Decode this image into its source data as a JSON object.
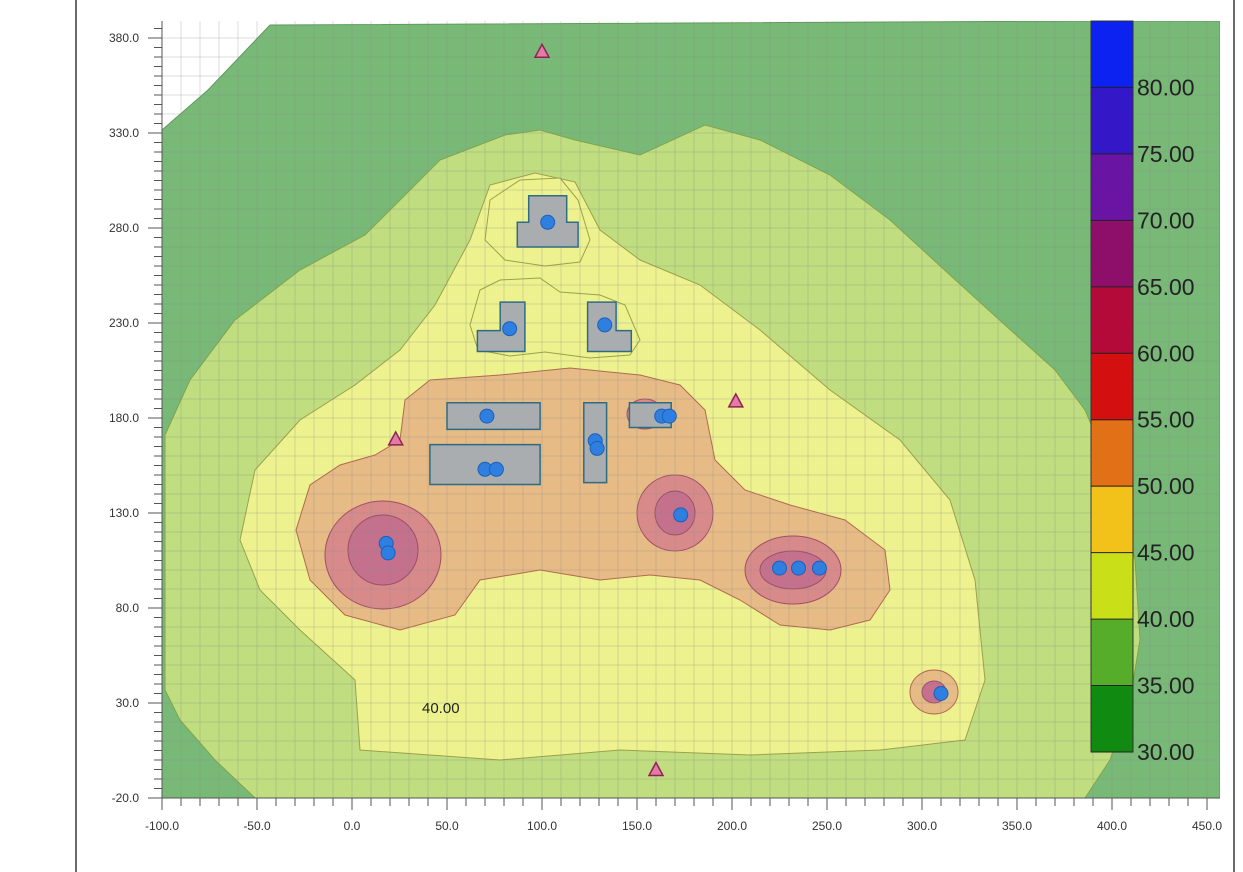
{
  "chart_data": {
    "type": "heatmap",
    "title": "",
    "xlabel": "",
    "ylabel": "",
    "xlim": [
      -100,
      455
    ],
    "ylim": [
      -20,
      390
    ],
    "x_ticks": [
      "-100.0",
      "-50.0",
      "0.0",
      "50.0",
      "100.0",
      "150.0",
      "200.0",
      "250.0",
      "300.0",
      "350.0",
      "400.0",
      "450.0"
    ],
    "y_ticks": [
      "-20.0",
      "30.0",
      "80.0",
      "130.0",
      "180.0",
      "230.0",
      "280.0",
      "330.0",
      "380.0"
    ],
    "x_tick_values": [
      -100,
      -50,
      0,
      50,
      100,
      150,
      200,
      250,
      300,
      350,
      400,
      450
    ],
    "y_tick_values": [
      -20,
      30,
      80,
      130,
      180,
      230,
      280,
      330,
      380
    ],
    "grid": true,
    "colorbar": {
      "levels": [
        30,
        35,
        40,
        45,
        50,
        55,
        60,
        65,
        70,
        75,
        80,
        85
      ],
      "labels": [
        "30.00",
        "35.00",
        "40.00",
        "45.00",
        "50.00",
        "55.00",
        "60.00",
        "65.00",
        "70.00",
        "75.00",
        "80.00"
      ],
      "colors": [
        "#118a11",
        "#56ad2a",
        "#c9e018",
        "#f3c21a",
        "#e27016",
        "#d40f0f",
        "#b40a3a",
        "#8e0f6a",
        "#6a14a3",
        "#3418c8",
        "#0c22f0"
      ]
    },
    "zone_colors": {
      "35-40": "#79b978",
      "40-45": "#c0dd80",
      "45-50": "#eef28e",
      "50-55": "#e7bb85",
      "55-60": "#d88a8a",
      "60-65": "#c5708d"
    },
    "contour_annotation": "40.00",
    "sources": [
      {
        "x": 103,
        "y": 283
      },
      {
        "x": 83,
        "y": 227
      },
      {
        "x": 133,
        "y": 229
      },
      {
        "x": 71,
        "y": 181
      },
      {
        "x": 163,
        "y": 181
      },
      {
        "x": 167,
        "y": 181
      },
      {
        "x": 70,
        "y": 153
      },
      {
        "x": 76,
        "y": 153
      },
      {
        "x": 128,
        "y": 168
      },
      {
        "x": 129,
        "y": 164
      },
      {
        "x": 173,
        "y": 129
      },
      {
        "x": 18,
        "y": 114
      },
      {
        "x": 19,
        "y": 109
      },
      {
        "x": 225,
        "y": 101
      },
      {
        "x": 235,
        "y": 101
      },
      {
        "x": 246,
        "y": 101
      },
      {
        "x": 310,
        "y": 35
      }
    ],
    "receivers": [
      {
        "x": 100,
        "y": 373
      },
      {
        "x": 23,
        "y": 169
      },
      {
        "x": 202,
        "y": 189
      },
      {
        "x": 160,
        "y": -5
      }
    ],
    "buildings": [
      {
        "points": [
          [
            93,
            297
          ],
          [
            113,
            297
          ],
          [
            113,
            283
          ],
          [
            119,
            283
          ],
          [
            119,
            270
          ],
          [
            87,
            270
          ],
          [
            87,
            283
          ],
          [
            93,
            283
          ]
        ]
      },
      {
        "points": [
          [
            78,
            241
          ],
          [
            91,
            241
          ],
          [
            91,
            215
          ],
          [
            66,
            215
          ],
          [
            66,
            226
          ],
          [
            78,
            226
          ]
        ]
      },
      {
        "points": [
          [
            124,
            241
          ],
          [
            139,
            241
          ],
          [
            139,
            226
          ],
          [
            147,
            226
          ],
          [
            147,
            215
          ],
          [
            124,
            215
          ]
        ]
      },
      {
        "points": [
          [
            50,
            188
          ],
          [
            99,
            188
          ],
          [
            99,
            174
          ],
          [
            50,
            174
          ]
        ]
      },
      {
        "points": [
          [
            146,
            188
          ],
          [
            168,
            188
          ],
          [
            168,
            175
          ],
          [
            146,
            175
          ]
        ]
      },
      {
        "points": [
          [
            122,
            188
          ],
          [
            134,
            188
          ],
          [
            134,
            146
          ],
          [
            122,
            146
          ]
        ]
      },
      {
        "points": [
          [
            41,
            166
          ],
          [
            99,
            166
          ],
          [
            99,
            145
          ],
          [
            41,
            145
          ]
        ]
      }
    ]
  }
}
